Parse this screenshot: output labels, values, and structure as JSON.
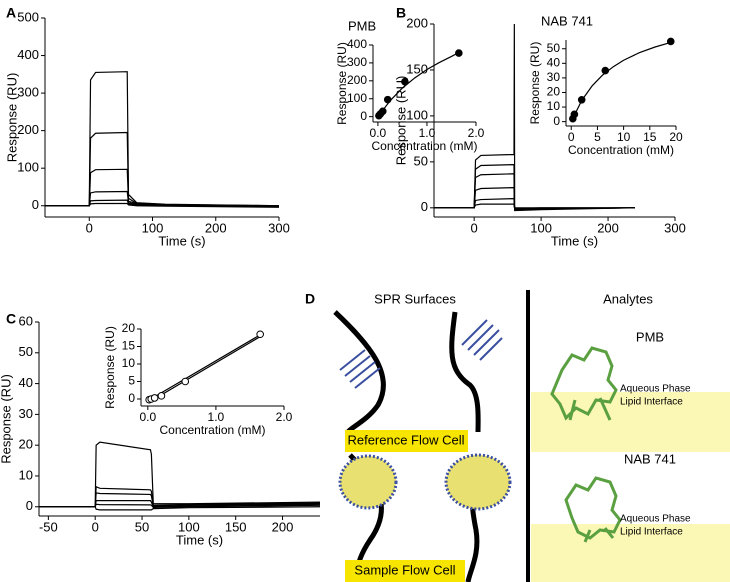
{
  "chart_data": [
    {
      "type": "line",
      "panel": "A",
      "xlabel": "Time (s)",
      "ylabel": "Response (RU)",
      "xlim": [
        -70,
        300
      ],
      "ylim": [
        -30,
        500
      ],
      "xticks": [
        0,
        100,
        200,
        300
      ],
      "yticks": [
        0,
        100,
        200,
        300,
        400,
        500
      ],
      "x": [
        -70,
        0,
        2,
        10,
        60,
        62,
        75,
        120,
        300
      ],
      "series": [
        {
          "color": "#000000",
          "values": [
            0,
            0,
            335,
            355,
            357,
            30,
            8,
            4,
            0
          ]
        },
        {
          "color": "#000000",
          "values": [
            0,
            0,
            180,
            193,
            195,
            20,
            6,
            3,
            0
          ]
        },
        {
          "color": "#000000",
          "values": [
            0,
            0,
            88,
            96,
            97,
            12,
            5,
            2,
            0
          ]
        },
        {
          "color": "#000000",
          "values": [
            0,
            0,
            34,
            37,
            38,
            8,
            3,
            1,
            -2
          ]
        },
        {
          "color": "#000000",
          "values": [
            0,
            0,
            13,
            14,
            15,
            5,
            2,
            0,
            -3
          ]
        },
        {
          "color": "#000000",
          "values": [
            0,
            0,
            5,
            6,
            6,
            2,
            0,
            -1,
            -4
          ]
        }
      ]
    },
    {
      "type": "scatter",
      "title": "PMB",
      "xlabel": "Concentration (mM)",
      "ylabel": "Response (RU)",
      "xlim": [
        -0.1,
        2.0
      ],
      "ylim": [
        -30,
        400
      ],
      "xticks": [
        {
          "value": 0,
          "label": "0.0"
        },
        {
          "value": 1,
          "label": "1.0"
        },
        {
          "value": 2,
          "label": "2.0"
        }
      ],
      "yticks": [
        0,
        100,
        200,
        300,
        400
      ],
      "series": [
        {
          "mode": "markers",
          "color": "#000000",
          "marker_fill": "#000000",
          "x": [
            0.02,
            0.05,
            0.1,
            0.2,
            0.55,
            1.65
          ],
          "values": [
            5,
            15,
            30,
            95,
            195,
            355
          ]
        },
        {
          "mode": "line",
          "color": "#000000",
          "x": [
            0,
            0.25,
            0.5,
            0.75,
            1,
            1.25,
            1.5,
            1.7
          ],
          "values": [
            0,
            89,
            160,
            216,
            263,
            302,
            336,
            365
          ]
        }
      ]
    },
    {
      "type": "line",
      "panel": "B",
      "xlabel": "Time (s)",
      "ylabel": "Response (RU)",
      "xlim": [
        -60,
        300
      ],
      "ylim": [
        -10,
        200
      ],
      "xticks": [
        0,
        100,
        200,
        300
      ],
      "yticks": [
        0,
        50,
        100,
        150,
        200
      ],
      "x": [
        -60,
        0,
        2,
        10,
        59.5,
        60,
        60.5,
        62,
        100,
        240
      ],
      "series": [
        {
          "color": "#000000",
          "values": [
            0,
            0,
            52,
            57,
            58,
            200,
            -3,
            -3,
            -2,
            0
          ]
        },
        {
          "color": "#000000",
          "values": [
            0,
            0,
            42,
            46,
            47,
            5,
            -2,
            -2,
            -1,
            0
          ]
        },
        {
          "color": "#000000",
          "values": [
            0,
            0,
            33,
            36,
            37,
            4,
            -2,
            -2,
            -1,
            0
          ]
        },
        {
          "color": "#000000",
          "values": [
            0,
            0,
            19,
            21,
            22,
            3,
            -1,
            -1,
            -1,
            0
          ]
        },
        {
          "color": "#000000",
          "values": [
            0,
            0,
            8,
            9,
            10,
            2,
            -1,
            -1,
            0,
            0
          ]
        },
        {
          "color": "#000000",
          "values": [
            0,
            0,
            3,
            4,
            4,
            1,
            0,
            0,
            0,
            0
          ]
        }
      ]
    },
    {
      "type": "scatter",
      "title": "NAB 741",
      "xlabel": "Concentration (mM)",
      "ylabel": "Response (RU)",
      "xlim": [
        -1,
        20
      ],
      "ylim": [
        -3,
        56
      ],
      "xticks": [
        0,
        5,
        10,
        15,
        20
      ],
      "yticks": [
        0,
        10,
        20,
        30,
        40,
        50
      ],
      "series": [
        {
          "mode": "markers",
          "color": "#000000",
          "marker_fill": "#000000",
          "x": [
            0.3,
            0.6,
            2,
            6.5,
            19
          ],
          "values": [
            2,
            5,
            15,
            35,
            55
          ]
        },
        {
          "mode": "line",
          "color": "#000000",
          "x": [
            0,
            2,
            4,
            6,
            8,
            10,
            13,
            16,
            19
          ],
          "values": [
            0,
            14.5,
            24.6,
            32,
            37.6,
            42.1,
            47.3,
            51.2,
            54.3
          ]
        }
      ]
    },
    {
      "type": "line",
      "panel": "C",
      "xlabel": "Time (s)",
      "ylabel": "Response (RU)",
      "xlim": [
        -60,
        240
      ],
      "ylim": [
        -3,
        60
      ],
      "xticks": [
        -50,
        0,
        50,
        100,
        150,
        200
      ],
      "yticks": [
        0,
        10,
        20,
        30,
        40,
        50,
        60
      ],
      "x": [
        -60,
        0,
        1,
        5,
        59,
        60,
        62,
        100,
        240
      ],
      "series": [
        {
          "color": "#000000",
          "values": [
            0,
            0,
            20,
            21,
            18.5,
            17,
            1,
            1,
            1.5
          ]
        },
        {
          "color": "#000000",
          "values": [
            0,
            0,
            6.5,
            6,
            5.5,
            5,
            0.5,
            0.8,
            1.2
          ]
        },
        {
          "color": "#000000",
          "values": [
            0,
            0,
            4.5,
            4.3,
            4,
            3.5,
            0.3,
            0.6,
            1
          ]
        },
        {
          "color": "#000000",
          "values": [
            0,
            0,
            2,
            2,
            2,
            1.5,
            0,
            0.3,
            0.8
          ]
        },
        {
          "color": "#000000",
          "values": [
            0,
            0,
            0.8,
            0.7,
            0.6,
            0.5,
            -0.2,
            0,
            0.5
          ]
        },
        {
          "color": "#000000",
          "values": [
            0,
            0,
            -0.8,
            -1,
            -1,
            -1,
            -0.6,
            -0.3,
            0
          ]
        }
      ]
    },
    {
      "type": "scatter",
      "xlabel": "Concentration (mM)",
      "ylabel": "Response (RU)",
      "xlim": [
        -0.1,
        2.0
      ],
      "ylim": [
        -2,
        20
      ],
      "xticks": [
        {
          "value": 0,
          "label": "0.0"
        },
        {
          "value": 1,
          "label": "1.0"
        },
        {
          "value": 2,
          "label": "2.0"
        }
      ],
      "yticks": [
        0,
        5,
        10,
        15,
        20
      ],
      "series": [
        {
          "mode": "line",
          "color": "#000000",
          "x": [
            0,
            1.7
          ],
          "values": [
            -0.5,
            18.9
          ]
        },
        {
          "mode": "line",
          "color": "#000000",
          "x": [
            0,
            1.7
          ],
          "values": [
            -1.1,
            18.4
          ]
        },
        {
          "mode": "markers",
          "color": "#000000",
          "marker_fill": "#ffffff",
          "x": [
            0.02,
            0.05,
            0.1,
            0.2,
            0.55,
            1.65
          ],
          "values": [
            -0.2,
            0,
            0.3,
            0.9,
            5,
            18.5
          ]
        }
      ]
    }
  ],
  "diagram": {
    "panel": "D",
    "surfaces_title": "SPR Surfaces",
    "analytes_title": "Analytes",
    "reference_label": "Reference Flow Cell",
    "sample_label": "Sample Flow Cell",
    "analytes": [
      {
        "name": "PMB",
        "upper": "Aqueous Phase",
        "lower": "Lipid Interface"
      },
      {
        "name": "NAB 741",
        "upper": "Aqueous Phase",
        "lower": "Lipid Interface"
      }
    ]
  }
}
